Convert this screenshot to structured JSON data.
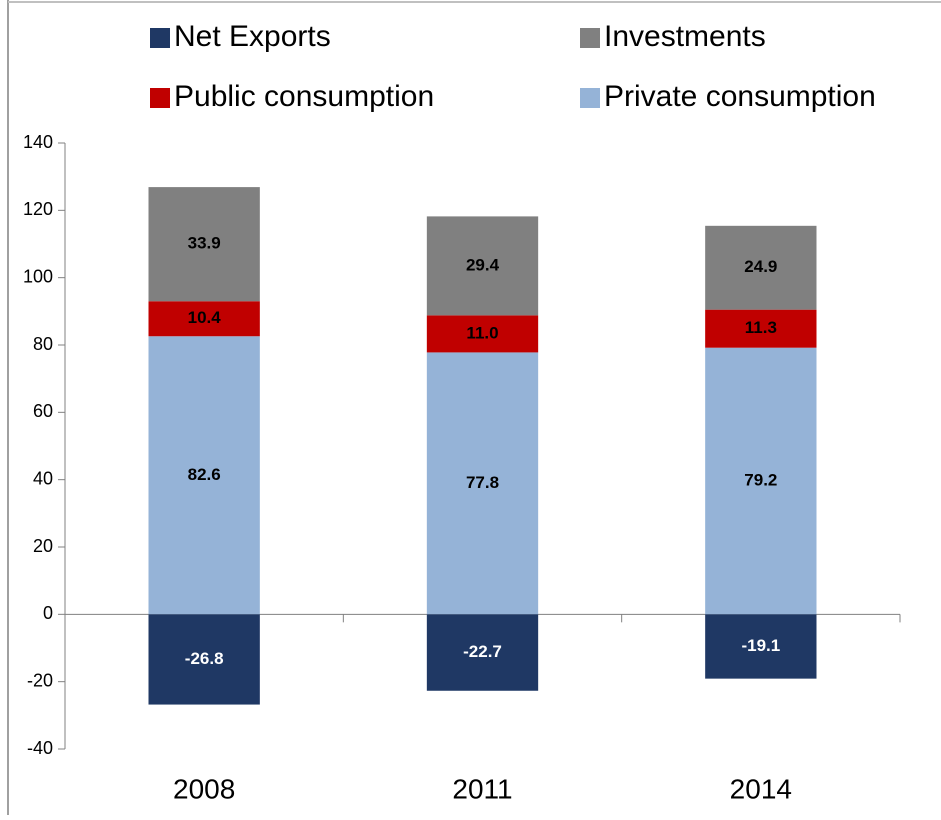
{
  "chart_data": {
    "type": "stacked_bar",
    "categories": [
      "2008",
      "2011",
      "2014"
    ],
    "series": [
      {
        "name": "Net Exports",
        "color": "#1f3864",
        "label_color": "#ffffff",
        "values": [
          -26.8,
          -22.7,
          -19.1
        ]
      },
      {
        "name": "Investments",
        "color": "#808080",
        "label_color": "#000000",
        "values": [
          33.9,
          29.4,
          24.9
        ]
      },
      {
        "name": "Public consumption",
        "color": "#c00000",
        "label_color": "#000000",
        "values": [
          10.4,
          11,
          11.3
        ],
        "value_labels": [
          "10.4",
          "11.0",
          "11.3"
        ]
      },
      {
        "name": "Private consumption",
        "color": "#95b3d7",
        "label_color": "#000000",
        "values": [
          82.6,
          77.8,
          79.2
        ]
      }
    ],
    "ylim": [
      -40,
      140
    ],
    "yticks": [
      -40,
      -20,
      0,
      20,
      40,
      60,
      80,
      100,
      120,
      140
    ],
    "grid": false,
    "legend": "top"
  }
}
